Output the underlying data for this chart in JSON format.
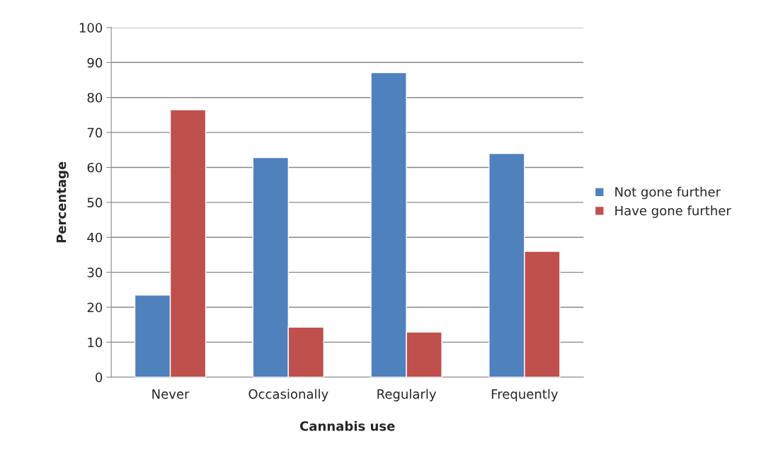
{
  "chart_data": {
    "type": "bar",
    "xlabel": "Cannabis use",
    "ylabel": "Percentage",
    "categories": [
      "Never",
      "Occasionally",
      "Regularly",
      "Frequently"
    ],
    "series": [
      {
        "name": "Not gone further",
        "color": "#4f81bd",
        "values": [
          23.5,
          62.8,
          87.1,
          64.0
        ]
      },
      {
        "name": "Have gone further",
        "color": "#c0504d",
        "values": [
          76.5,
          14.3,
          12.9,
          36.0
        ]
      }
    ],
    "ylim": [
      0,
      100
    ],
    "yticks": [
      0,
      10,
      20,
      30,
      40,
      50,
      60,
      70,
      80,
      90,
      100
    ],
    "grid": "y",
    "legend": "right"
  }
}
